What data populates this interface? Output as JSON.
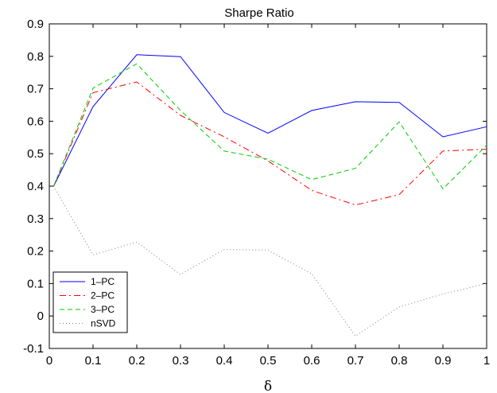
{
  "chart_data": {
    "type": "line",
    "title": "Sharpe Ratio",
    "xlabel": "δ",
    "ylabel": "",
    "xlim": [
      0,
      1
    ],
    "ylim": [
      -0.1,
      0.9
    ],
    "x": [
      0.01,
      0.1,
      0.2,
      0.3,
      0.4,
      0.5,
      0.6,
      0.7,
      0.8,
      0.9,
      1.0
    ],
    "xticks": [
      "0",
      "0.1",
      "0.2",
      "0.3",
      "0.4",
      "0.5",
      "0.6",
      "0.7",
      "0.8",
      "0.9",
      "1"
    ],
    "yticks": [
      "-0.1",
      "0",
      "0.1",
      "0.2",
      "0.3",
      "0.4",
      "0.5",
      "0.6",
      "0.7",
      "0.8",
      "0.9"
    ],
    "legend_position": "bottom-left",
    "grid": false,
    "series": [
      {
        "name": "1–PC",
        "color": "#0000ff",
        "dash": "",
        "values": [
          0.4,
          0.645,
          0.805,
          0.799,
          0.627,
          0.563,
          0.633,
          0.66,
          0.658,
          0.552,
          0.583
        ]
      },
      {
        "name": "2–PC",
        "color": "#ff0000",
        "dash": "8,4,2,4",
        "values": [
          0.4,
          0.688,
          0.721,
          0.618,
          0.552,
          0.478,
          0.387,
          0.342,
          0.374,
          0.508,
          0.514
        ]
      },
      {
        "name": "3–PC",
        "color": "#00cc00",
        "dash": "6,4",
        "values": [
          0.4,
          0.702,
          0.777,
          0.633,
          0.508,
          0.483,
          0.42,
          0.455,
          0.598,
          0.392,
          0.526
        ]
      },
      {
        "name": "nSVD",
        "color": "#808080",
        "dash": "1,3",
        "values": [
          0.4,
          0.188,
          0.228,
          0.128,
          0.205,
          0.203,
          0.13,
          -0.062,
          0.028,
          0.068,
          0.1
        ]
      }
    ]
  }
}
